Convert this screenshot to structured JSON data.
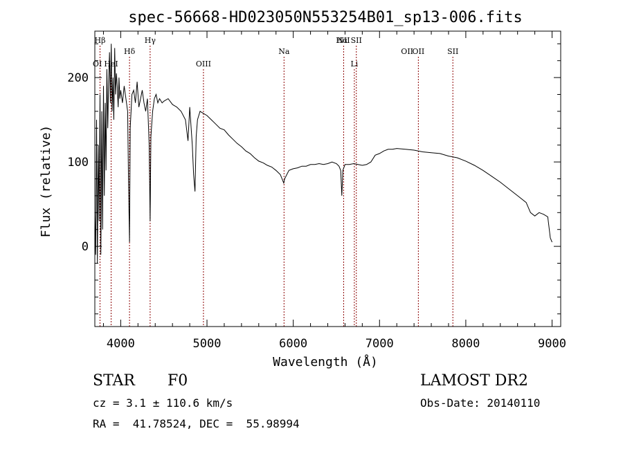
{
  "chart_data": {
    "type": "line",
    "title": "spec-56668-HD023050N553254B01_sp13-006.fits",
    "xlabel": "Wavelength (Å)",
    "ylabel": "Flux (relative)",
    "xlim": [
      3700,
      9100
    ],
    "ylim": [
      -95,
      255
    ],
    "xticks": [
      4000,
      5000,
      6000,
      7000,
      8000,
      9000
    ],
    "yticks": [
      0,
      100,
      200
    ],
    "grid": false,
    "line_color": "#000000",
    "marker_color": "#8b0000",
    "series": [
      {
        "x": [
          3700,
          3710,
          3720,
          3730,
          3740,
          3750,
          3760,
          3770,
          3780,
          3790,
          3800,
          3810,
          3820,
          3830,
          3840,
          3850,
          3860,
          3870,
          3880,
          3890,
          3900,
          3910,
          3920,
          3930,
          3940,
          3950,
          3960,
          3970,
          3980,
          3990,
          4000,
          4020,
          4040,
          4060,
          4080,
          4090,
          4102,
          4110,
          4130,
          4150,
          4170,
          4190,
          4210,
          4230,
          4250,
          4270,
          4290,
          4310,
          4330,
          4341,
          4350,
          4370,
          4390,
          4410,
          4430,
          4450,
          4480,
          4500,
          4550,
          4600,
          4650,
          4700,
          4750,
          4780,
          4800,
          4830,
          4845,
          4861,
          4875,
          4890,
          4920,
          4950,
          5000,
          5050,
          5100,
          5150,
          5200,
          5250,
          5300,
          5350,
          5400,
          5450,
          5500,
          5550,
          5600,
          5650,
          5700,
          5750,
          5800,
          5850,
          5890,
          5900,
          5950,
          6000,
          6050,
          6100,
          6150,
          6200,
          6250,
          6300,
          6350,
          6400,
          6450,
          6500,
          6530,
          6550,
          6563,
          6575,
          6600,
          6650,
          6700,
          6750,
          6800,
          6850,
          6900,
          6950,
          7000,
          7050,
          7100,
          7150,
          7200,
          7300,
          7400,
          7500,
          7600,
          7700,
          7800,
          7900,
          8000,
          8100,
          8200,
          8300,
          8400,
          8500,
          8600,
          8700,
          8750,
          8800,
          8850,
          8900,
          8950,
          8980,
          9000
        ],
        "y": [
          40,
          -10,
          150,
          -20,
          120,
          30,
          180,
          -10,
          160,
          20,
          190,
          60,
          170,
          90,
          210,
          140,
          195,
          230,
          170,
          240,
          160,
          200,
          150,
          235,
          180,
          205,
          190,
          165,
          200,
          175,
          185,
          170,
          190,
          175,
          160,
          80,
          5,
          140,
          180,
          185,
          170,
          195,
          165,
          175,
          185,
          170,
          160,
          175,
          120,
          30,
          130,
          160,
          175,
          180,
          170,
          175,
          170,
          172,
          175,
          168,
          165,
          160,
          150,
          125,
          165,
          120,
          85,
          65,
          130,
          150,
          160,
          158,
          155,
          150,
          145,
          140,
          138,
          132,
          127,
          122,
          118,
          113,
          110,
          105,
          101,
          99,
          96,
          94,
          90,
          85,
          75,
          80,
          90,
          92,
          93,
          95,
          95,
          97,
          97,
          98,
          97,
          98,
          100,
          98,
          95,
          90,
          60,
          90,
          97,
          97,
          98,
          97,
          96,
          97,
          100,
          108,
          110,
          113,
          115,
          115,
          116,
          115,
          114,
          112,
          111,
          110,
          107,
          105,
          101,
          96,
          90,
          83,
          76,
          68,
          60,
          52,
          40,
          36,
          40,
          38,
          35,
          10,
          5
        ]
      }
    ],
    "line_markers": [
      {
        "label": "Hα",
        "x": 6563,
        "row": "high",
        "show_line": false
      },
      {
        "label": "Hβ",
        "x": 3760,
        "row": "top"
      },
      {
        "label": "Hδ",
        "x": 4102,
        "row": "mid"
      },
      {
        "label": "Hγ",
        "x": 4341,
        "row": "high"
      },
      {
        "label": "OI",
        "x": 3729,
        "row": "low",
        "show_line": false
      },
      {
        "label": "HeI",
        "x": 3889,
        "row": "low"
      },
      {
        "label": "OIII",
        "x": 4959,
        "row": "low"
      },
      {
        "label": "Na",
        "x": 5893,
        "row": "mid"
      },
      {
        "label": "NII",
        "x": 6584,
        "row": "high"
      },
      {
        "label": "Li",
        "x": 6708,
        "row": "low"
      },
      {
        "label": "SII",
        "x": 6731,
        "row": "high"
      },
      {
        "label": "OII",
        "x": 7320,
        "row": "mid",
        "show_line": false
      },
      {
        "label": "OII",
        "x": 7450,
        "row": "mid"
      },
      {
        "label": "SII",
        "x": 7850,
        "row": "mid"
      }
    ]
  },
  "info": {
    "class": "STAR",
    "subclass": "F0",
    "survey": "LAMOST DR2",
    "redshift": "cz = 3.1 ± 110.6 km/s",
    "obs_date": "Obs-Date: 20140110",
    "coords": "RA =  41.78524, DEC =  55.98994"
  }
}
